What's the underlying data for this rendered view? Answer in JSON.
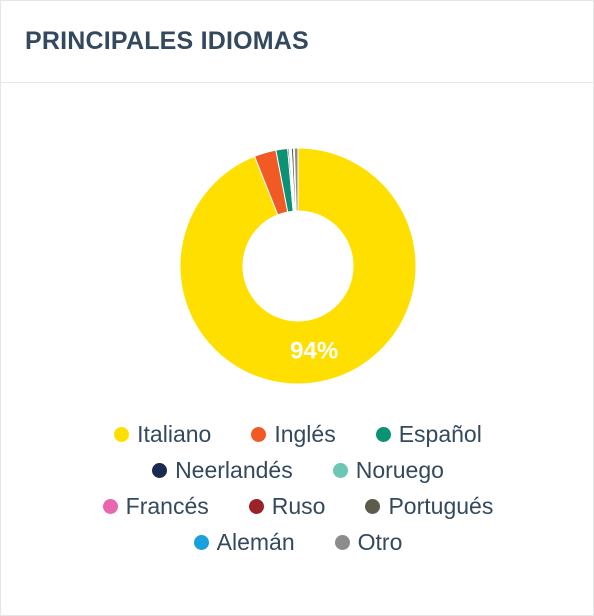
{
  "header": {
    "title": "PRINCIPALES IDIOMAS"
  },
  "chart_data": {
    "type": "pie",
    "donut": true,
    "categories": [
      "Italiano",
      "Inglés",
      "Español",
      "Neerlandés",
      "Noruego",
      "Francés",
      "Ruso",
      "Portugués",
      "Alemán",
      "Otro"
    ],
    "values": [
      94,
      3,
      1.6,
      0.2,
      0.1,
      0.1,
      0.1,
      0.3,
      0.1,
      0.5
    ],
    "colors": [
      "#ffdf00",
      "#f15a24",
      "#0a9275",
      "#1b2a4e",
      "#6cc7b5",
      "#e868b0",
      "#9b2226",
      "#5c5b4e",
      "#1aa0dc",
      "#8c8c8c"
    ],
    "data_labels": [
      {
        "category": "Italiano",
        "text": "94%"
      }
    ],
    "legend_position": "bottom",
    "title": ""
  }
}
